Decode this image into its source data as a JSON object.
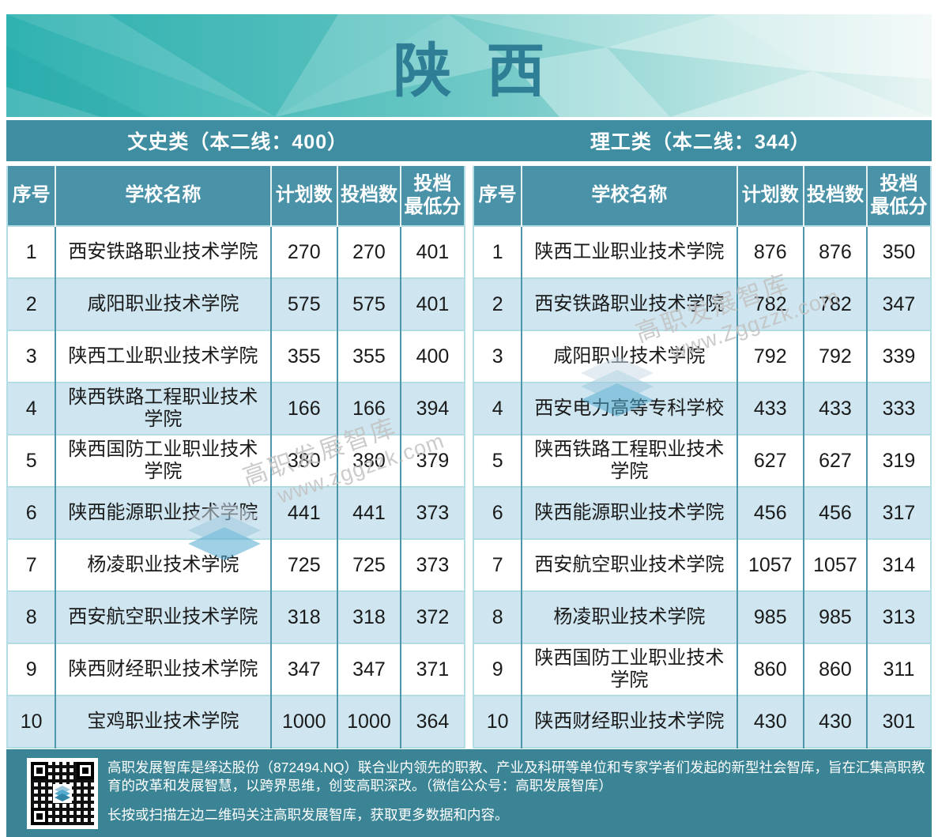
{
  "page_title": "陕西",
  "categories": [
    {
      "label": "文史类（本二线：400）"
    },
    {
      "label": "理工类（本二线：344）"
    }
  ],
  "columns": [
    "序号",
    "学校名称",
    "计划数",
    "投档数",
    "投档\n最低分"
  ],
  "tables": [
    {
      "category": "文史类",
      "rows": [
        {
          "seq": "1",
          "school": "西安铁路职业技术学院",
          "plan": "270",
          "filed": "270",
          "min_score": "401"
        },
        {
          "seq": "2",
          "school": "咸阳职业技术学院",
          "plan": "575",
          "filed": "575",
          "min_score": "401"
        },
        {
          "seq": "3",
          "school": "陕西工业职业技术学院",
          "plan": "355",
          "filed": "355",
          "min_score": "400"
        },
        {
          "seq": "4",
          "school": "陕西铁路工程职业技术学院",
          "plan": "166",
          "filed": "166",
          "min_score": "394"
        },
        {
          "seq": "5",
          "school": "陕西国防工业职业技术学院",
          "plan": "380",
          "filed": "380",
          "min_score": "379"
        },
        {
          "seq": "6",
          "school": "陕西能源职业技术学院",
          "plan": "441",
          "filed": "441",
          "min_score": "373"
        },
        {
          "seq": "7",
          "school": "杨凌职业技术学院",
          "plan": "725",
          "filed": "725",
          "min_score": "373"
        },
        {
          "seq": "8",
          "school": "西安航空职业技术学院",
          "plan": "318",
          "filed": "318",
          "min_score": "372"
        },
        {
          "seq": "9",
          "school": "陕西财经职业技术学院",
          "plan": "347",
          "filed": "347",
          "min_score": "371"
        },
        {
          "seq": "10",
          "school": "宝鸡职业技术学院",
          "plan": "1000",
          "filed": "1000",
          "min_score": "364"
        }
      ]
    },
    {
      "category": "理工类",
      "rows": [
        {
          "seq": "1",
          "school": "陕西工业职业技术学院",
          "plan": "876",
          "filed": "876",
          "min_score": "350"
        },
        {
          "seq": "2",
          "school": "西安铁路职业技术学院",
          "plan": "782",
          "filed": "782",
          "min_score": "347"
        },
        {
          "seq": "3",
          "school": "咸阳职业技术学院",
          "plan": "792",
          "filed": "792",
          "min_score": "339"
        },
        {
          "seq": "4",
          "school": "西安电力高等专科学校",
          "plan": "433",
          "filed": "433",
          "min_score": "333"
        },
        {
          "seq": "5",
          "school": "陕西铁路工程职业技术学院",
          "plan": "627",
          "filed": "627",
          "min_score": "319"
        },
        {
          "seq": "6",
          "school": "陕西能源职业技术学院",
          "plan": "456",
          "filed": "456",
          "min_score": "317"
        },
        {
          "seq": "7",
          "school": "西安航空职业技术学院",
          "plan": "1057",
          "filed": "1057",
          "min_score": "314"
        },
        {
          "seq": "8",
          "school": "杨凌职业技术学院",
          "plan": "985",
          "filed": "985",
          "min_score": "313"
        },
        {
          "seq": "9",
          "school": "陕西国防工业职业技术学院",
          "plan": "860",
          "filed": "860",
          "min_score": "311"
        },
        {
          "seq": "10",
          "school": "陕西财经职业技术学院",
          "plan": "430",
          "filed": "430",
          "min_score": "301"
        }
      ]
    }
  ],
  "watermarks": [
    {
      "line1": "高职发展智库",
      "line2": "www.zggzzk.com"
    },
    {
      "line1": "高职发展智库",
      "line2": "www.Zggzzk.com"
    }
  ],
  "footer": {
    "intro": "高职发展智库是绎达股份（872494.NQ）联合业内领先的职教、产业及科研等单位和专家学者们发起的新型社会智库，旨在汇集高职教育的改革和发展智慧，以跨界思维，创变高职深改。（微信公众号：高职发展智库）",
    "cta": "长按或扫描左边二维码关注高职发展智库，获取更多数据和内容。"
  },
  "icons": {
    "qr_code": "qr-code",
    "watermark_logo": "layered-stack-icon"
  },
  "colors": {
    "band_teal": "#35b3b2",
    "bar_teal": "#3f8da1",
    "header_teal": "#4a92a8",
    "row_stripe": "#cfe6f1",
    "grid_vertical": "#4e96ab",
    "grid_horizontal": "#b3dde4",
    "title_teal": "#2e7e96",
    "footer_teal": "#3a8495"
  }
}
